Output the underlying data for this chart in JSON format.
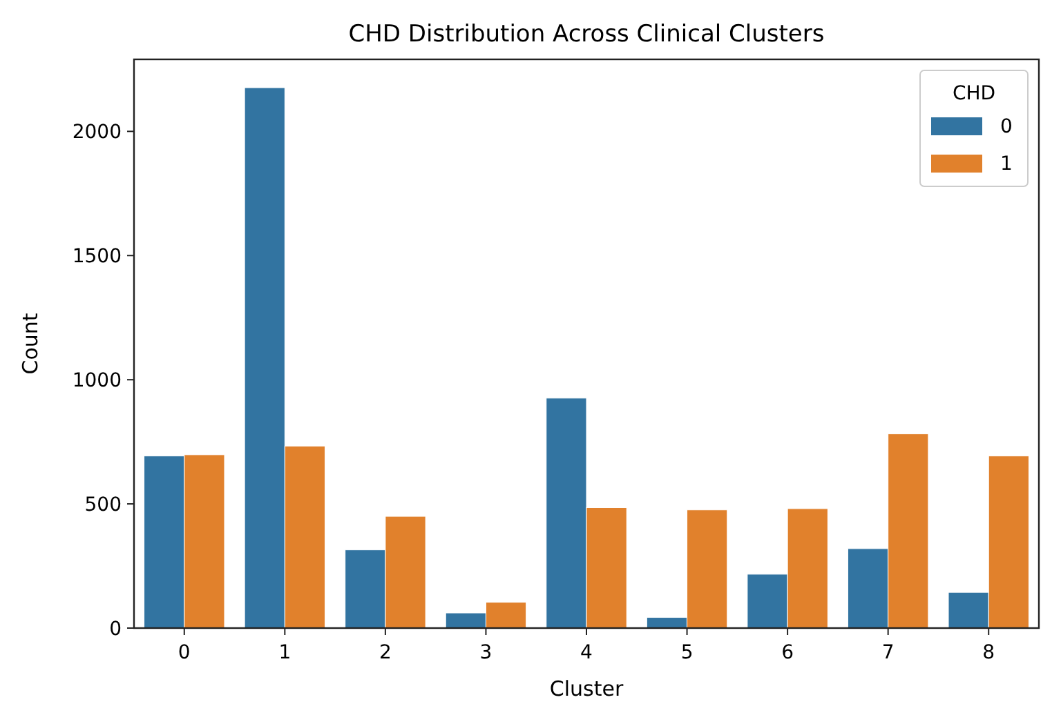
{
  "chart_data": {
    "type": "bar",
    "title": "CHD Distribution Across Clinical Clusters",
    "xlabel": "Cluster",
    "ylabel": "Count",
    "legend_title": "CHD",
    "categories": [
      "0",
      "1",
      "2",
      "3",
      "4",
      "5",
      "6",
      "7",
      "8"
    ],
    "series": [
      {
        "name": "0",
        "color": "#3274a1",
        "values": [
          693,
          2176,
          315,
          61,
          926,
          43,
          217,
          320,
          144
        ]
      },
      {
        "name": "1",
        "color": "#e1812c",
        "values": [
          698,
          733,
          450,
          104,
          485,
          476,
          481,
          782,
          693
        ]
      }
    ],
    "ylim": [
      0,
      2290
    ],
    "yticks": [
      0,
      500,
      1000,
      1500,
      2000
    ],
    "legend": "top right",
    "grid": false
  }
}
